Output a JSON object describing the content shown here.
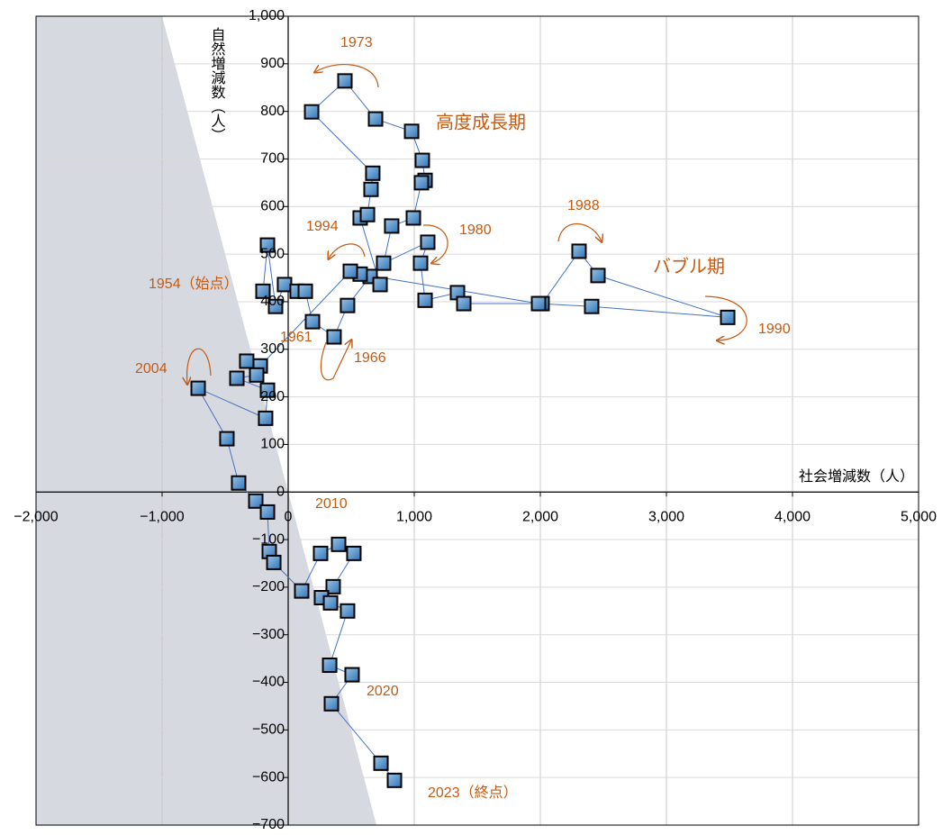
{
  "chart_data": {
    "type": "line",
    "xlabel": "社会増減数（人）",
    "ylabel": "自然増減数（人）",
    "x": [
      -200,
      -164,
      -100,
      -29,
      71,
      136,
      193,
      364,
      471,
      650,
      729,
      571,
      629,
      657,
      671,
      186,
      450,
      693,
      979,
      1064,
      1086,
      1057,
      993,
      821,
      757,
      1107,
      1050,
      1086,
      1343,
      1393,
      2014,
      2307,
      2457,
      3486,
      2407,
      1986,
      571,
      493,
      -221,
      -329,
      -250,
      -407,
      -164,
      -179,
      -714,
      -486,
      -393,
      -257,
      -164,
      -150,
      -114,
      107,
      257,
      400,
      521,
      357,
      264,
      336,
      471,
      329,
      507,
      343,
      736,
      843
    ],
    "values": [
      422,
      519,
      390,
      436,
      422,
      422,
      358,
      326,
      392,
      453,
      436,
      576,
      583,
      636,
      670,
      799,
      864,
      784,
      758,
      697,
      655,
      650,
      576,
      559,
      481,
      525,
      481,
      403,
      419,
      396,
      396,
      506,
      455,
      367,
      390,
      396,
      458,
      464,
      265,
      275,
      246,
      239,
      214,
      155,
      218,
      112,
      19,
      -19,
      -42,
      -125,
      -148,
      -208,
      -129,
      -110,
      -129,
      -199,
      -222,
      -233,
      -250,
      -364,
      -384,
      -445,
      -570,
      -606
    ],
    "line_color": "#4472c4",
    "marker_color": "#5b9bd5",
    "xlim": [
      -2000,
      5000
    ],
    "xticks": [
      {
        "value": -2000,
        "label": "−2,000"
      },
      {
        "value": -1000,
        "label": "−1,000"
      },
      0,
      {
        "value": 1000,
        "label": "1,000"
      },
      {
        "value": 2000,
        "label": "2,000"
      },
      {
        "value": 3000,
        "label": "3,000"
      },
      {
        "value": 4000,
        "label": "4,000"
      },
      {
        "value": 5000,
        "label": "5,000"
      }
    ],
    "ylim": [
      -700,
      1000
    ],
    "yticks": [
      {
        "value": -700,
        "label": "−700"
      },
      {
        "value": -600,
        "label": "−600"
      },
      {
        "value": -500,
        "label": "−500"
      },
      {
        "value": -400,
        "label": "−400"
      },
      {
        "value": -300,
        "label": "−300"
      },
      {
        "value": -200,
        "label": "−200"
      },
      {
        "value": -100,
        "label": "−100"
      },
      0,
      100,
      200,
      300,
      400,
      500,
      600,
      700,
      800,
      900,
      {
        "value": 1000,
        "label": "1,000"
      }
    ],
    "grid": true,
    "annotations": [
      "1973",
      "高度成長期",
      "1988",
      "1994",
      "1980",
      "バブル期",
      "1954（始点）",
      "1961",
      "1966",
      "1990",
      "2004",
      "2010",
      "2020",
      "2023（終点）"
    ]
  }
}
